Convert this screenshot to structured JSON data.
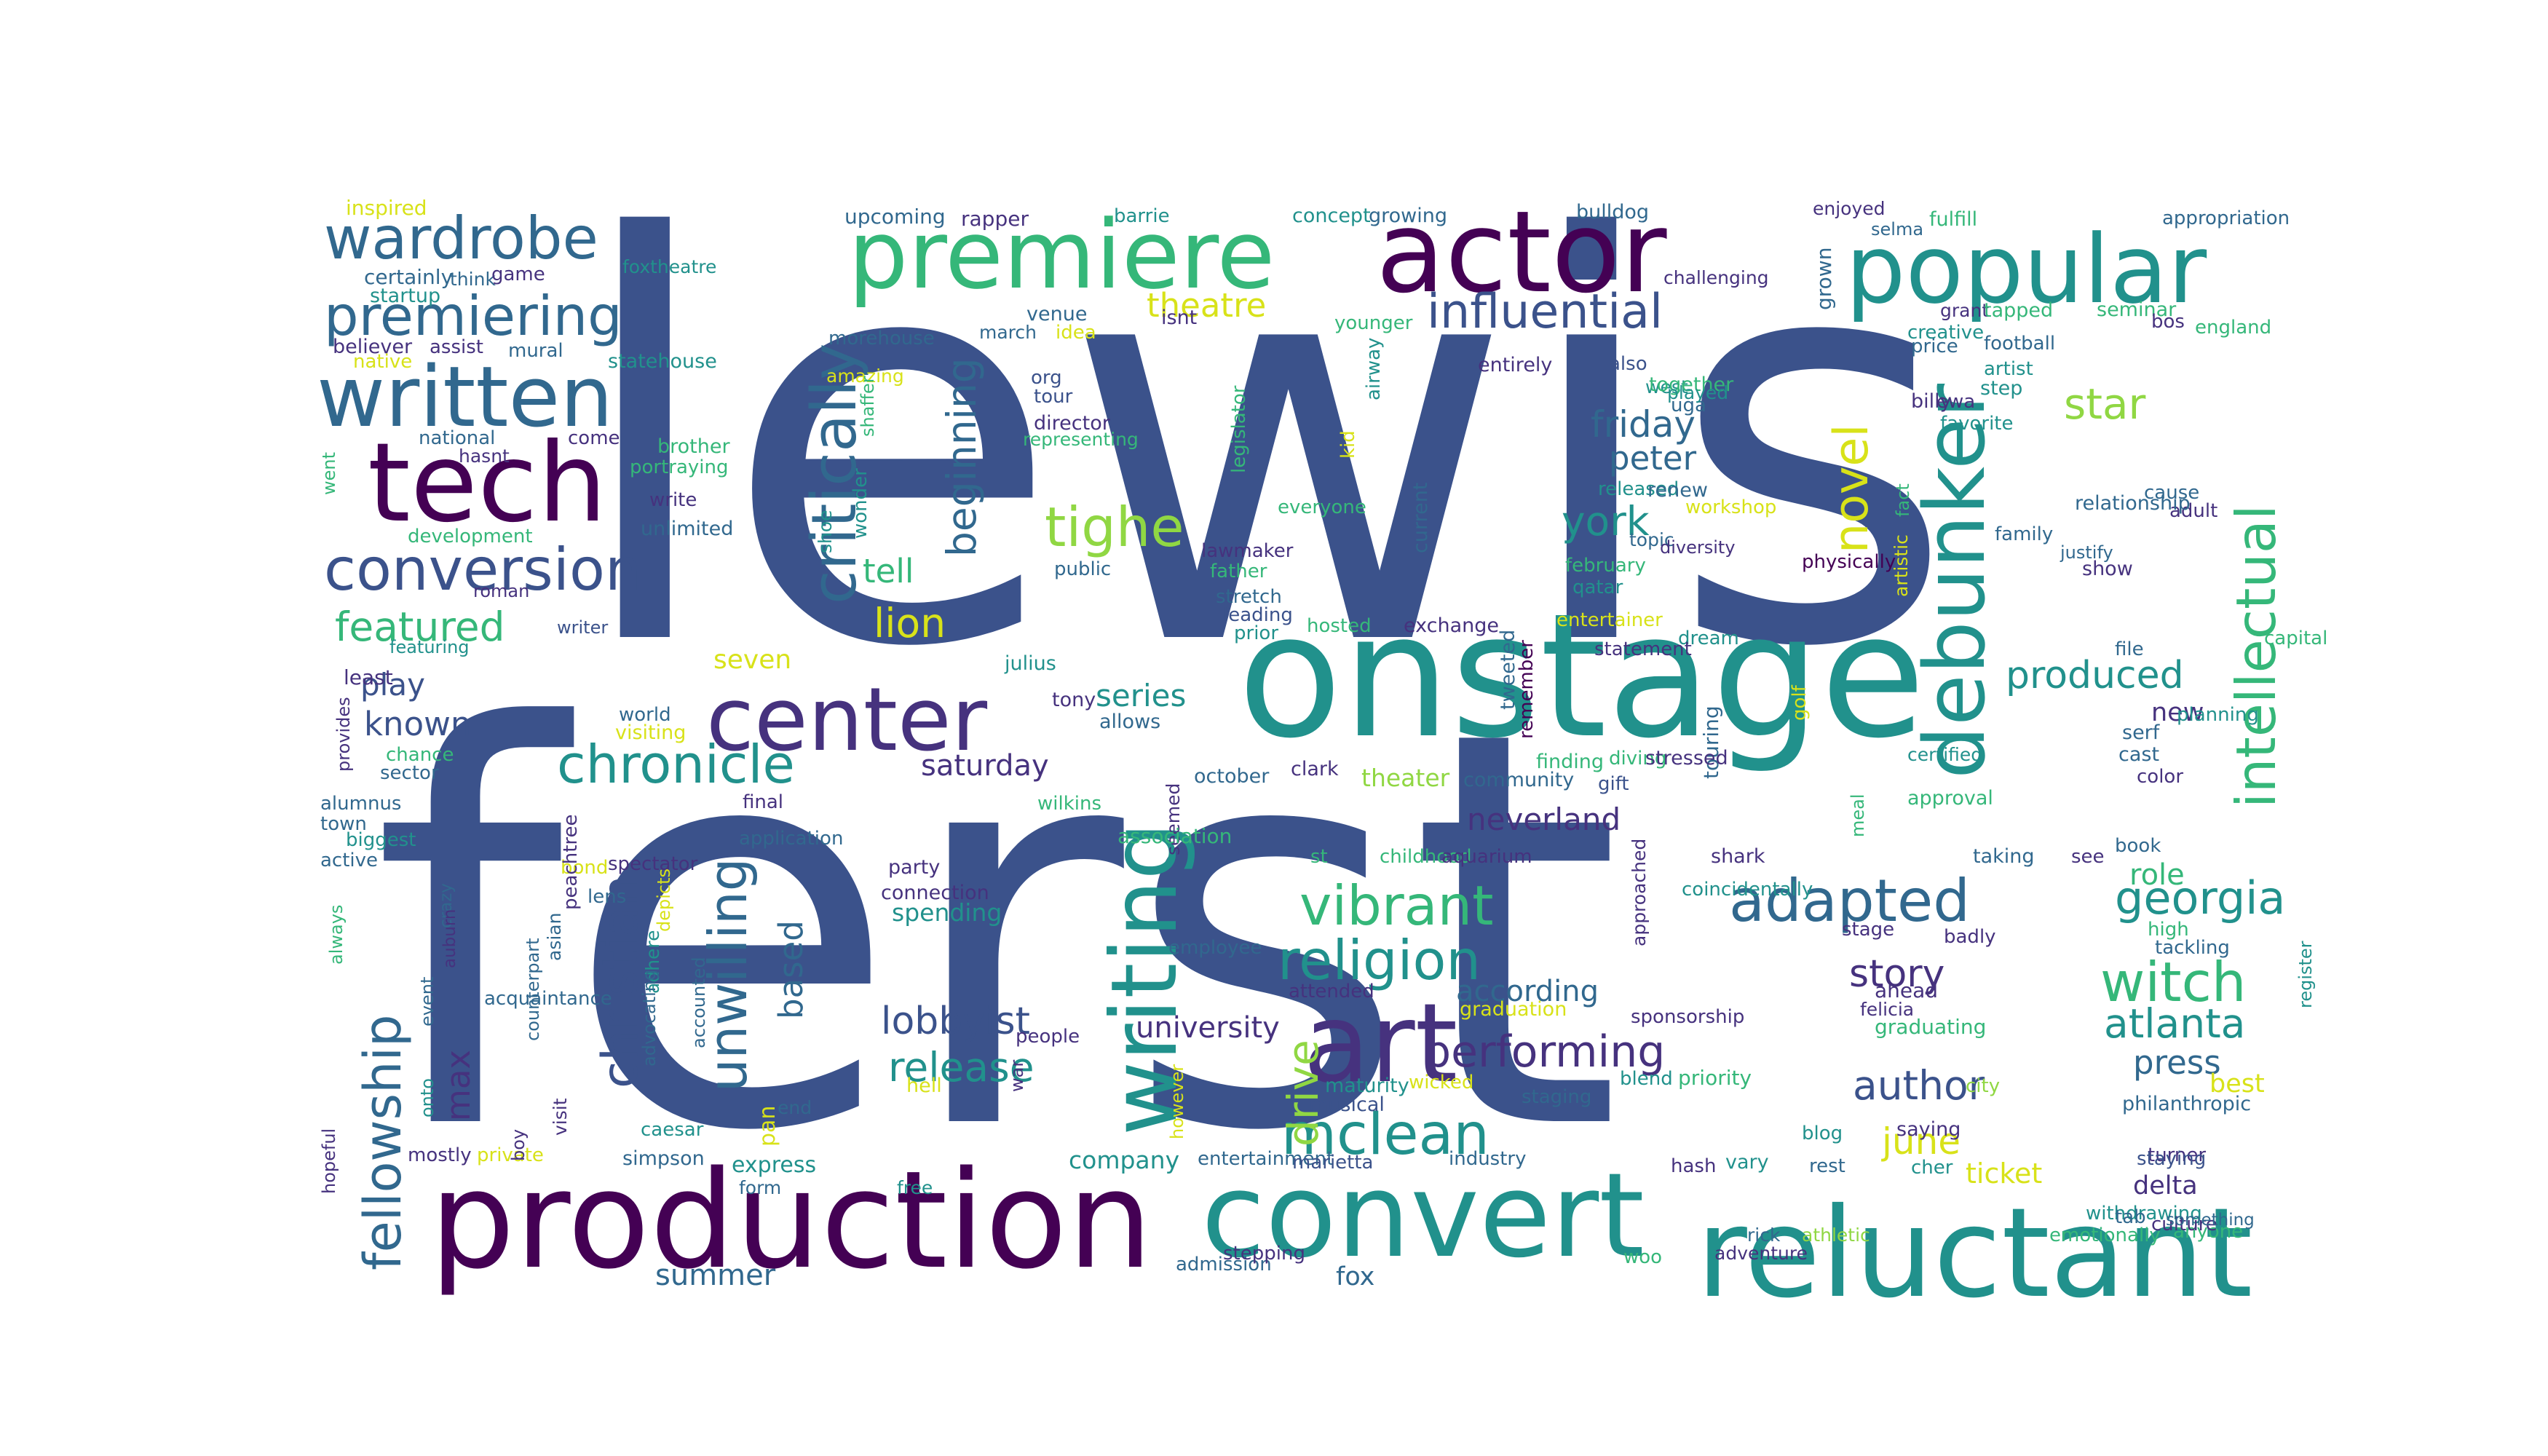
{
  "palette": {
    "navy": "#3b528b",
    "indigo": "#46327e",
    "purple": "#440154",
    "blue": "#31688e",
    "teal": "#21918c",
    "green": "#35b779",
    "lime": "#90d743",
    "yellow": "#d8e219"
  },
  "words": [
    {
      "text": "lewis",
      "color": "navy"
    },
    {
      "text": "ferst",
      "color": "navy"
    },
    {
      "text": "onstage",
      "color": "teal"
    },
    {
      "text": "production",
      "color": "purple"
    },
    {
      "text": "convert",
      "color": "teal"
    },
    {
      "text": "reluctant",
      "color": "teal"
    },
    {
      "text": "actor",
      "color": "purple"
    },
    {
      "text": "premiere",
      "color": "green"
    },
    {
      "text": "popular",
      "color": "teal"
    },
    {
      "text": "art",
      "color": "indigo"
    },
    {
      "text": "tech",
      "color": "purple"
    },
    {
      "text": "written",
      "color": "blue"
    },
    {
      "text": "center",
      "color": "indigo"
    },
    {
      "text": "writing",
      "color": "teal"
    },
    {
      "text": "debunker",
      "color": "teal"
    },
    {
      "text": "wardrobe",
      "color": "blue"
    },
    {
      "text": "premiering",
      "color": "blue"
    },
    {
      "text": "conversion",
      "color": "navy"
    },
    {
      "text": "critically",
      "color": "blue"
    },
    {
      "text": "tighe",
      "color": "lime"
    },
    {
      "text": "novel",
      "color": "yellow"
    },
    {
      "text": "intellectual",
      "color": "green"
    },
    {
      "text": "influential",
      "color": "navy"
    },
    {
      "text": "chronicle",
      "color": "teal"
    },
    {
      "text": "fellowship",
      "color": "blue"
    },
    {
      "text": "unwilling",
      "color": "blue"
    },
    {
      "text": "vibrant",
      "color": "green"
    },
    {
      "text": "religion",
      "color": "teal"
    },
    {
      "text": "adapted",
      "color": "blue"
    },
    {
      "text": "mclean",
      "color": "teal"
    },
    {
      "text": "witch",
      "color": "green"
    },
    {
      "text": "christian",
      "color": "navy"
    },
    {
      "text": "lobbyist",
      "color": "navy"
    },
    {
      "text": "performing",
      "color": "indigo"
    },
    {
      "text": "georgia",
      "color": "teal"
    },
    {
      "text": "atlanta",
      "color": "teal"
    },
    {
      "text": "author",
      "color": "navy"
    },
    {
      "text": "star",
      "color": "lime"
    },
    {
      "text": "lion",
      "color": "yellow"
    },
    {
      "text": "featured",
      "color": "green"
    },
    {
      "text": "york",
      "color": "teal"
    },
    {
      "text": "friday",
      "color": "blue"
    },
    {
      "text": "peter",
      "color": "blue"
    },
    {
      "text": "theatre",
      "color": "yellow"
    },
    {
      "text": "beginning",
      "color": "blue"
    },
    {
      "text": "produced",
      "color": "teal"
    },
    {
      "text": "release",
      "color": "teal"
    },
    {
      "text": "drive",
      "color": "lime"
    },
    {
      "text": "story",
      "color": "indigo"
    },
    {
      "text": "press",
      "color": "blue"
    },
    {
      "text": "june",
      "color": "yellow"
    },
    {
      "text": "max",
      "color": "indigo"
    },
    {
      "text": "based",
      "color": "blue"
    },
    {
      "text": "play",
      "color": "navy"
    },
    {
      "text": "known",
      "color": "navy"
    },
    {
      "text": "tell",
      "color": "green"
    },
    {
      "text": "series",
      "color": "teal"
    },
    {
      "text": "saturday",
      "color": "indigo"
    },
    {
      "text": "according",
      "color": "blue"
    },
    {
      "text": "summer",
      "color": "blue"
    },
    {
      "text": "seven",
      "color": "yellow"
    },
    {
      "text": "neverland",
      "color": "indigo"
    },
    {
      "text": "new",
      "color": "indigo"
    },
    {
      "text": "role",
      "color": "green"
    },
    {
      "text": "best",
      "color": "yellow"
    },
    {
      "text": "ticket",
      "color": "yellow"
    },
    {
      "text": "delta",
      "color": "indigo"
    },
    {
      "text": "fox",
      "color": "blue"
    },
    {
      "text": "theater",
      "color": "lime"
    },
    {
      "text": "university",
      "color": "indigo"
    },
    {
      "text": "pan",
      "color": "yellow"
    },
    {
      "text": "express",
      "color": "teal"
    },
    {
      "text": "company",
      "color": "teal"
    },
    {
      "text": "spending",
      "color": "teal"
    },
    {
      "text": "inspired",
      "color": "yellow"
    },
    {
      "text": "upcoming",
      "color": "blue"
    },
    {
      "text": "rapper",
      "color": "indigo"
    },
    {
      "text": "barrie",
      "color": "teal"
    },
    {
      "text": "concept",
      "color": "teal"
    },
    {
      "text": "growing",
      "color": "blue"
    },
    {
      "text": "bulldog",
      "color": "blue"
    },
    {
      "text": "enjoyed",
      "color": "indigo"
    },
    {
      "text": "fulfill",
      "color": "green"
    },
    {
      "text": "appropriation",
      "color": "blue"
    },
    {
      "text": "certainly",
      "color": "blue"
    },
    {
      "text": "think",
      "color": "blue"
    },
    {
      "text": "game",
      "color": "indigo"
    },
    {
      "text": "foxtheatre",
      "color": "teal"
    },
    {
      "text": "startup",
      "color": "teal"
    },
    {
      "text": "venue",
      "color": "blue"
    },
    {
      "text": "challenging",
      "color": "indigo"
    },
    {
      "text": "selma",
      "color": "blue"
    },
    {
      "text": "grown",
      "color": "blue"
    },
    {
      "text": "grant",
      "color": "indigo"
    },
    {
      "text": "tapped",
      "color": "green"
    },
    {
      "text": "seminar",
      "color": "green"
    },
    {
      "text": "bos",
      "color": "indigo"
    },
    {
      "text": "england",
      "color": "green"
    },
    {
      "text": "believer",
      "color": "indigo"
    },
    {
      "text": "assist",
      "color": "indigo"
    },
    {
      "text": "mural",
      "color": "blue"
    },
    {
      "text": "statehouse",
      "color": "teal"
    },
    {
      "text": "morehouse",
      "color": "blue"
    },
    {
      "text": "march",
      "color": "blue"
    },
    {
      "text": "idea",
      "color": "yellow"
    },
    {
      "text": "isnt",
      "color": "indigo"
    },
    {
      "text": "younger",
      "color": "green"
    },
    {
      "text": "airway",
      "color": "teal"
    },
    {
      "text": "creative",
      "color": "teal"
    },
    {
      "text": "football",
      "color": "blue"
    },
    {
      "text": "native",
      "color": "yellow"
    },
    {
      "text": "amazing",
      "color": "yellow"
    },
    {
      "text": "org",
      "color": "navy"
    },
    {
      "text": "tour",
      "color": "navy"
    },
    {
      "text": "entirely",
      "color": "indigo"
    },
    {
      "text": "also",
      "color": "navy"
    },
    {
      "text": "price",
      "color": "blue"
    },
    {
      "text": "artist",
      "color": "teal"
    },
    {
      "text": "step",
      "color": "teal"
    },
    {
      "text": "west",
      "color": "teal"
    },
    {
      "text": "together",
      "color": "green"
    },
    {
      "text": "uga",
      "color": "blue"
    },
    {
      "text": "played",
      "color": "teal"
    },
    {
      "text": "ewa",
      "color": "indigo"
    },
    {
      "text": "billy",
      "color": "indigo"
    },
    {
      "text": "favorite",
      "color": "teal"
    },
    {
      "text": "national",
      "color": "blue"
    },
    {
      "text": "hasnt",
      "color": "indigo"
    },
    {
      "text": "come",
      "color": "indigo"
    },
    {
      "text": "brother",
      "color": "green"
    },
    {
      "text": "portraying",
      "color": "green"
    },
    {
      "text": "shaffer",
      "color": "green"
    },
    {
      "text": "director",
      "color": "indigo"
    },
    {
      "text": "representing",
      "color": "green"
    },
    {
      "text": "legislator",
      "color": "green"
    },
    {
      "text": "kid",
      "color": "yellow"
    },
    {
      "text": "released",
      "color": "teal"
    },
    {
      "text": "renew",
      "color": "blue"
    },
    {
      "text": "workshop",
      "color": "yellow"
    },
    {
      "text": "cause",
      "color": "blue"
    },
    {
      "text": "adult",
      "color": "indigo"
    },
    {
      "text": "went",
      "color": "green"
    },
    {
      "text": "write",
      "color": "indigo"
    },
    {
      "text": "unlimited",
      "color": "blue"
    },
    {
      "text": "development",
      "color": "green"
    },
    {
      "text": "shoe",
      "color": "teal"
    },
    {
      "text": "wonder",
      "color": "teal"
    },
    {
      "text": "everyone",
      "color": "green"
    },
    {
      "text": "current",
      "color": "blue"
    },
    {
      "text": "topic",
      "color": "blue"
    },
    {
      "text": "fact",
      "color": "green"
    },
    {
      "text": "relationship",
      "color": "blue"
    },
    {
      "text": "family",
      "color": "blue"
    },
    {
      "text": "justify",
      "color": "blue"
    },
    {
      "text": "show",
      "color": "indigo"
    },
    {
      "text": "physically",
      "color": "purple"
    },
    {
      "text": "public",
      "color": "blue"
    },
    {
      "text": "lawmaker",
      "color": "indigo"
    },
    {
      "text": "father",
      "color": "green"
    },
    {
      "text": "february",
      "color": "green"
    },
    {
      "text": "qatar",
      "color": "teal"
    },
    {
      "text": "diversity",
      "color": "indigo"
    },
    {
      "text": "artistic",
      "color": "yellow"
    },
    {
      "text": "roman",
      "color": "indigo"
    },
    {
      "text": "writer",
      "color": "navy"
    },
    {
      "text": "stretch",
      "color": "blue"
    },
    {
      "text": "leading",
      "color": "navy"
    },
    {
      "text": "prior",
      "color": "teal"
    },
    {
      "text": "hosted",
      "color": "green"
    },
    {
      "text": "exchange",
      "color": "indigo"
    },
    {
      "text": "entertainer",
      "color": "yellow"
    },
    {
      "text": "dream",
      "color": "teal"
    },
    {
      "text": "capital",
      "color": "green"
    },
    {
      "text": "featuring",
      "color": "teal"
    },
    {
      "text": "julius",
      "color": "teal"
    },
    {
      "text": "statement",
      "color": "indigo"
    },
    {
      "text": "file",
      "color": "blue"
    },
    {
      "text": "least",
      "color": "indigo"
    },
    {
      "text": "tony",
      "color": "indigo"
    },
    {
      "text": "tweeted",
      "color": "blue"
    },
    {
      "text": "golf",
      "color": "yellow"
    },
    {
      "text": "world",
      "color": "blue"
    },
    {
      "text": "allows",
      "color": "blue"
    },
    {
      "text": "remember",
      "color": "purple"
    },
    {
      "text": "touring",
      "color": "blue"
    },
    {
      "text": "serf",
      "color": "blue"
    },
    {
      "text": "planning",
      "color": "teal"
    },
    {
      "text": "provides",
      "color": "indigo"
    },
    {
      "text": "visiting",
      "color": "yellow"
    },
    {
      "text": "chance",
      "color": "green"
    },
    {
      "text": "clark",
      "color": "indigo"
    },
    {
      "text": "finding",
      "color": "green"
    },
    {
      "text": "diving",
      "color": "green"
    },
    {
      "text": "stressed",
      "color": "indigo"
    },
    {
      "text": "certified",
      "color": "teal"
    },
    {
      "text": "cast",
      "color": "blue"
    },
    {
      "text": "sector",
      "color": "blue"
    },
    {
      "text": "october",
      "color": "blue"
    },
    {
      "text": "community",
      "color": "blue"
    },
    {
      "text": "gift",
      "color": "navy"
    },
    {
      "text": "color",
      "color": "indigo"
    },
    {
      "text": "approval",
      "color": "green"
    },
    {
      "text": "alumnus",
      "color": "blue"
    },
    {
      "text": "final",
      "color": "indigo"
    },
    {
      "text": "wilkins",
      "color": "green"
    },
    {
      "text": "town",
      "color": "blue"
    },
    {
      "text": "meal",
      "color": "green"
    },
    {
      "text": "biggest",
      "color": "teal"
    },
    {
      "text": "application",
      "color": "blue"
    },
    {
      "text": "seemed",
      "color": "indigo"
    },
    {
      "text": "association",
      "color": "green"
    },
    {
      "text": "book",
      "color": "blue"
    },
    {
      "text": "active",
      "color": "blue"
    },
    {
      "text": "st",
      "color": "green"
    },
    {
      "text": "childhood",
      "color": "green"
    },
    {
      "text": "aquarium",
      "color": "indigo"
    },
    {
      "text": "shark",
      "color": "indigo"
    },
    {
      "text": "taking",
      "color": "blue"
    },
    {
      "text": "see",
      "color": "indigo"
    },
    {
      "text": "bond",
      "color": "yellow"
    },
    {
      "text": "spectator",
      "color": "indigo"
    },
    {
      "text": "party",
      "color": "indigo"
    },
    {
      "text": "coincidentally",
      "color": "teal"
    },
    {
      "text": "always",
      "color": "green"
    },
    {
      "text": "crazy",
      "color": "blue"
    },
    {
      "text": "auburn",
      "color": "indigo"
    },
    {
      "text": "lens",
      "color": "blue"
    },
    {
      "text": "peachtree",
      "color": "indigo"
    },
    {
      "text": "connection",
      "color": "indigo"
    },
    {
      "text": "register",
      "color": "teal"
    },
    {
      "text": "badly",
      "color": "indigo"
    },
    {
      "text": "stage",
      "color": "indigo"
    },
    {
      "text": "high",
      "color": "green"
    },
    {
      "text": "tackling",
      "color": "blue"
    },
    {
      "text": "event",
      "color": "blue"
    },
    {
      "text": "acquaintance",
      "color": "blue"
    },
    {
      "text": "asian",
      "color": "blue"
    },
    {
      "text": "depicts",
      "color": "yellow"
    },
    {
      "text": "employee",
      "color": "blue"
    },
    {
      "text": "attended",
      "color": "indigo"
    },
    {
      "text": "graduation",
      "color": "yellow"
    },
    {
      "text": "ahead",
      "color": "indigo"
    },
    {
      "text": "felicia",
      "color": "indigo"
    },
    {
      "text": "onto",
      "color": "teal"
    },
    {
      "text": "counterpart",
      "color": "blue"
    },
    {
      "text": "adhere",
      "color": "teal"
    },
    {
      "text": "people",
      "color": "indigo"
    },
    {
      "text": "sponsorship",
      "color": "indigo"
    },
    {
      "text": "graduating",
      "color": "green"
    },
    {
      "text": "advocating",
      "color": "blue"
    },
    {
      "text": "accounted",
      "color": "blue"
    },
    {
      "text": "hell",
      "color": "yellow"
    },
    {
      "text": "blend",
      "color": "teal"
    },
    {
      "text": "priority",
      "color": "green"
    },
    {
      "text": "city",
      "color": "lime"
    },
    {
      "text": "philanthropic",
      "color": "blue"
    },
    {
      "text": "hopeful",
      "color": "indigo"
    },
    {
      "text": "maturity",
      "color": "teal"
    },
    {
      "text": "wicked",
      "color": "yellow"
    },
    {
      "text": "staging",
      "color": "blue"
    },
    {
      "text": "caesar",
      "color": "teal"
    },
    {
      "text": "end",
      "color": "blue"
    },
    {
      "text": "musical",
      "color": "navy"
    },
    {
      "text": "blog",
      "color": "teal"
    },
    {
      "text": "saying",
      "color": "indigo"
    },
    {
      "text": "mostly",
      "color": "indigo"
    },
    {
      "text": "private",
      "color": "yellow"
    },
    {
      "text": "visit",
      "color": "indigo"
    },
    {
      "text": "simpson",
      "color": "blue"
    },
    {
      "text": "however",
      "color": "yellow"
    },
    {
      "text": "entertainment",
      "color": "blue"
    },
    {
      "text": "marietta",
      "color": "navy"
    },
    {
      "text": "industry",
      "color": "blue"
    },
    {
      "text": "hash",
      "color": "indigo"
    },
    {
      "text": "vary",
      "color": "teal"
    },
    {
      "text": "rest",
      "color": "blue"
    },
    {
      "text": "cher",
      "color": "teal"
    },
    {
      "text": "turner",
      "color": "indigo"
    },
    {
      "text": "staying",
      "color": "navy"
    },
    {
      "text": "boy",
      "color": "indigo"
    },
    {
      "text": "form",
      "color": "blue"
    },
    {
      "text": "free",
      "color": "teal"
    },
    {
      "text": "war",
      "color": "indigo"
    },
    {
      "text": "admission",
      "color": "blue"
    },
    {
      "text": "stepping",
      "color": "indigo"
    },
    {
      "text": "woo",
      "color": "green"
    },
    {
      "text": "adventure",
      "color": "indigo"
    },
    {
      "text": "athletic",
      "color": "lime"
    },
    {
      "text": "rick",
      "color": "blue"
    },
    {
      "text": "emotionally",
      "color": "green"
    },
    {
      "text": "anyone",
      "color": "green"
    },
    {
      "text": "withdrawing",
      "color": "teal"
    },
    {
      "text": "tab",
      "color": "blue"
    },
    {
      "text": "culture",
      "color": "indigo"
    },
    {
      "text": "something",
      "color": "blue"
    },
    {
      "text": "approached",
      "color": "indigo"
    },
    {
      "text": "historic",
      "color": "indigo"
    },
    {
      "text": "list",
      "color": "indigo"
    }
  ]
}
